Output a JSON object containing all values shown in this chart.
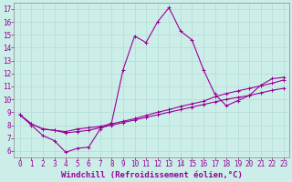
{
  "x_range": [
    -0.5,
    23.5
  ],
  "y_range": [
    5.5,
    17.5
  ],
  "x_ticks": [
    0,
    1,
    2,
    3,
    4,
    5,
    6,
    7,
    8,
    9,
    10,
    11,
    12,
    13,
    14,
    15,
    16,
    17,
    18,
    19,
    20,
    21,
    22,
    23
  ],
  "y_ticks": [
    6,
    7,
    8,
    9,
    10,
    11,
    12,
    13,
    14,
    15,
    16,
    17
  ],
  "xlabel": "Windchill (Refroidissement éolien,°C)",
  "line_color": "#990099",
  "bg_color": "#cceee8",
  "line1_y": [
    8.8,
    8.0,
    7.2,
    6.8,
    5.9,
    6.2,
    6.3,
    7.7,
    8.2,
    12.3,
    14.9,
    14.4,
    16.0,
    17.1,
    15.3,
    14.6,
    12.3,
    10.4,
    9.5,
    9.9,
    10.3,
    11.1,
    11.6,
    11.7
  ],
  "line2_y": [
    8.8,
    8.1,
    7.7,
    7.6,
    7.4,
    7.5,
    7.6,
    7.8,
    8.0,
    8.2,
    8.4,
    8.6,
    8.8,
    9.0,
    9.2,
    9.4,
    9.6,
    9.8,
    10.0,
    10.15,
    10.3,
    10.5,
    10.7,
    10.85
  ],
  "line3_y": [
    8.8,
    8.1,
    7.7,
    7.6,
    7.5,
    7.7,
    7.8,
    7.9,
    8.1,
    8.3,
    8.5,
    8.75,
    9.0,
    9.2,
    9.45,
    9.65,
    9.85,
    10.2,
    10.45,
    10.65,
    10.85,
    11.05,
    11.25,
    11.5
  ],
  "grid_color": "#b8ddd8",
  "tick_fontsize": 5.5,
  "xlabel_fontsize": 6.5,
  "marker_size": 2.5,
  "line_width": 0.8
}
